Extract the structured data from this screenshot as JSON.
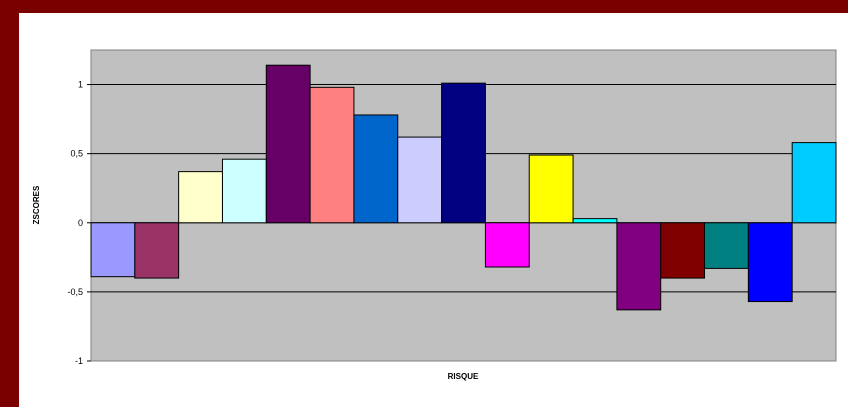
{
  "chart_data": {
    "type": "bar",
    "title": "",
    "xlabel": "RISQUE",
    "ylabel": "ZSCORES",
    "ylim": [
      -1,
      1.25
    ],
    "yticks": [
      -1,
      -0.5,
      0,
      0.5,
      1
    ],
    "ytick_labels": [
      "-1",
      "-0,5",
      "0",
      "0,5",
      "1"
    ],
    "grid": true,
    "legend": "none",
    "plot_background": "#c0c0c0",
    "values": [
      -0.39,
      -0.4,
      0.37,
      0.46,
      1.14,
      0.98,
      0.78,
      0.62,
      1.01,
      -0.32,
      0.49,
      0.03,
      -0.63,
      -0.4,
      -0.33,
      -0.57,
      0.58
    ],
    "colors": [
      "#9999ff",
      "#993366",
      "#ffffcc",
      "#ccffff",
      "#660066",
      "#ff8080",
      "#0066cc",
      "#ccccff",
      "#000080",
      "#ff00ff",
      "#ffff00",
      "#00ffff",
      "#800080",
      "#800000",
      "#008080",
      "#0000ff",
      "#00ccff"
    ]
  }
}
